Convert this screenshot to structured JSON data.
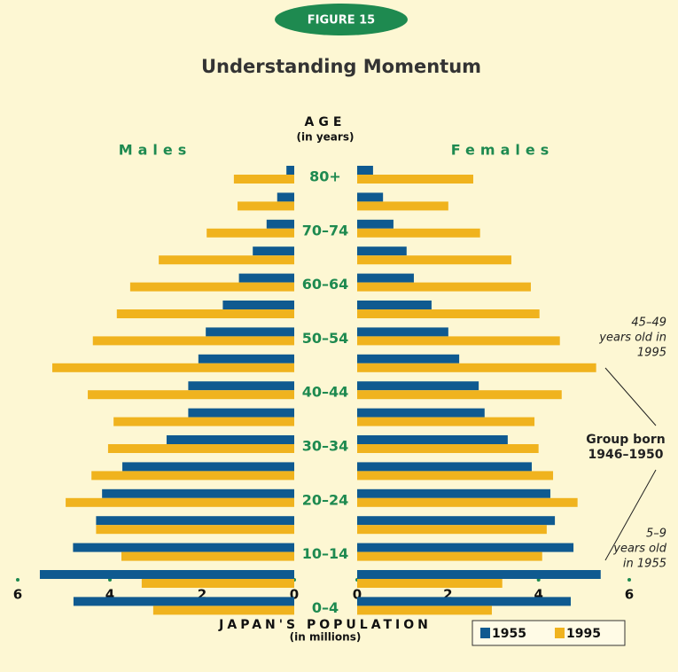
{
  "figure_label": "FIGURE 15",
  "chart_data": {
    "type": "population_pyramid",
    "title": "Understanding Momentum",
    "y_label": "AGE",
    "y_sublabel": "(in years)",
    "x_label": "JAPAN'S POPULATION",
    "x_sublabel": "(in millions)",
    "categories": [
      "80+",
      null,
      "70–74",
      null,
      "60–64",
      null,
      "50–54",
      null,
      "40–44",
      null,
      "30–34",
      null,
      "20–24",
      null,
      "10–14",
      null,
      "0–4"
    ],
    "groups": [
      {
        "name": "Males",
        "side": "left",
        "xlim": [
          0,
          6
        ],
        "xticks": [
          0,
          2,
          4,
          6
        ],
        "series": [
          {
            "name": "1955",
            "color": "#0f5a90",
            "values": [
              0.17,
              0.37,
              0.6,
              0.9,
              1.2,
              1.55,
              1.92,
              2.08,
              2.3,
              2.3,
              2.77,
              3.73,
              4.17,
              4.3,
              4.8,
              5.52,
              4.79
            ]
          },
          {
            "name": "1995",
            "color": "#f0b31e",
            "values": [
              1.31,
              1.23,
              1.9,
              2.94,
              3.56,
              3.85,
              4.37,
              5.25,
              4.48,
              3.92,
              4.04,
              4.4,
              4.96,
              4.3,
              3.75,
              3.31,
              3.06
            ]
          }
        ]
      },
      {
        "name": "Females",
        "side": "right",
        "xlim": [
          0,
          6
        ],
        "xticks": [
          0,
          2,
          4,
          6
        ],
        "series": [
          {
            "name": "1955",
            "color": "#0f5a90",
            "values": [
              0.35,
              0.57,
              0.8,
              1.09,
              1.25,
              1.64,
              2.01,
              2.25,
              2.68,
              2.81,
              3.32,
              3.85,
              4.26,
              4.36,
              4.77,
              5.37,
              4.71
            ]
          },
          {
            "name": "1995",
            "color": "#f0b31e",
            "values": [
              2.56,
              2.01,
              2.71,
              3.4,
              3.83,
              4.02,
              4.47,
              5.27,
              4.51,
              3.91,
              4.0,
              4.32,
              4.86,
              4.18,
              4.08,
              3.2,
              2.97
            ]
          }
        ]
      }
    ],
    "annotations": [
      {
        "lines": [
          "45–49",
          "years old in",
          "1995"
        ]
      },
      {
        "lines": [
          "Group born",
          "1946–1950"
        ]
      },
      {
        "lines": [
          "5–9",
          "years old",
          "in 1955"
        ]
      }
    ]
  }
}
